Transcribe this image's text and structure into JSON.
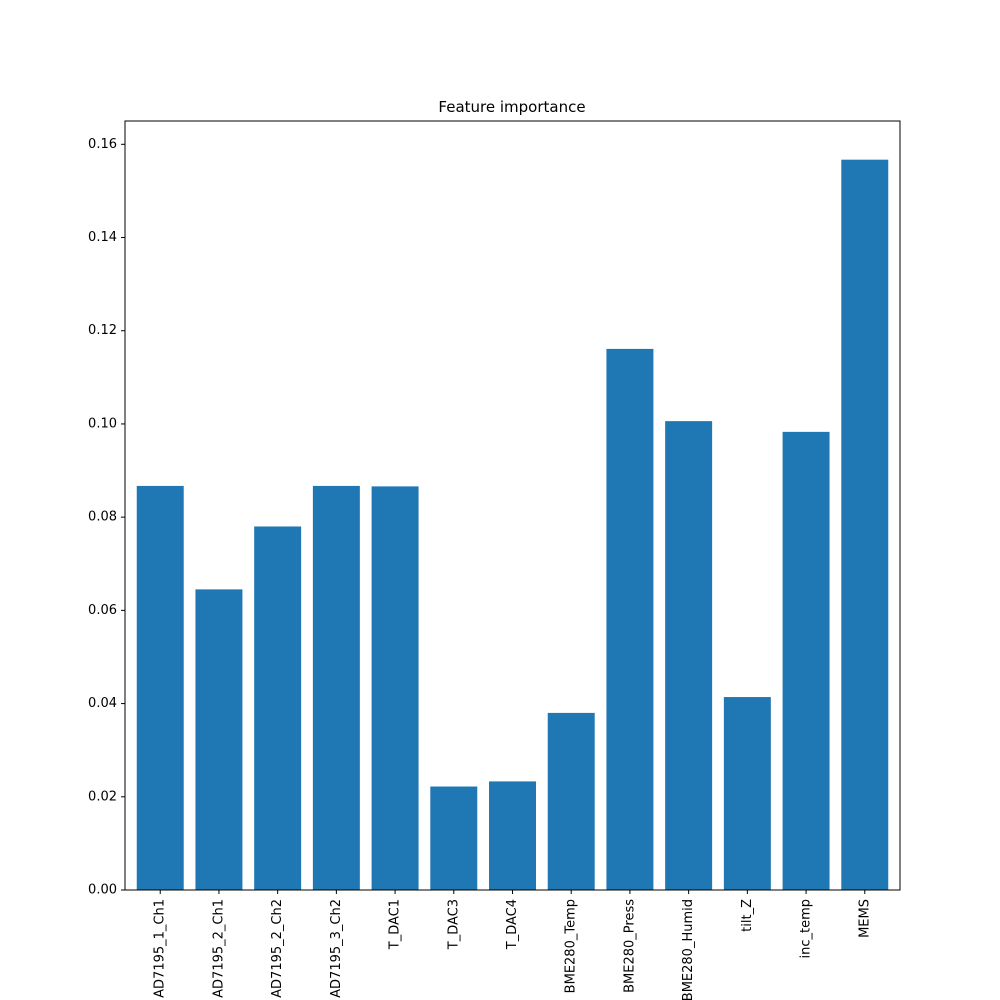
{
  "chart_data": {
    "type": "bar",
    "title": "Feature importance",
    "xlabel": "",
    "ylabel": "",
    "categories": [
      "AD7195_1_Ch1",
      "AD7195_2_Ch1",
      "AD7195_2_Ch2",
      "AD7195_3_Ch2",
      "T_DAC1",
      "T_DAC3",
      "T_DAC4",
      "BME280_Temp",
      "BME280_Press",
      "BME280_Humid",
      "tilt_Z",
      "inc_temp",
      "MEMS"
    ],
    "values": [
      0.0867,
      0.0645,
      0.078,
      0.0867,
      0.0866,
      0.0222,
      0.0233,
      0.038,
      0.1161,
      0.1006,
      0.0414,
      0.0983,
      0.1567
    ],
    "ylim": [
      0,
      0.165
    ],
    "yticks": [
      "0.00",
      "0.02",
      "0.04",
      "0.06",
      "0.08",
      "0.10",
      "0.12",
      "0.14",
      "0.16"
    ],
    "ytick_values": [
      0,
      0.02,
      0.04,
      0.06,
      0.08,
      0.1,
      0.12,
      0.14,
      0.16
    ],
    "bar_color": "#1f77b4",
    "grid": false,
    "legend": "none"
  }
}
